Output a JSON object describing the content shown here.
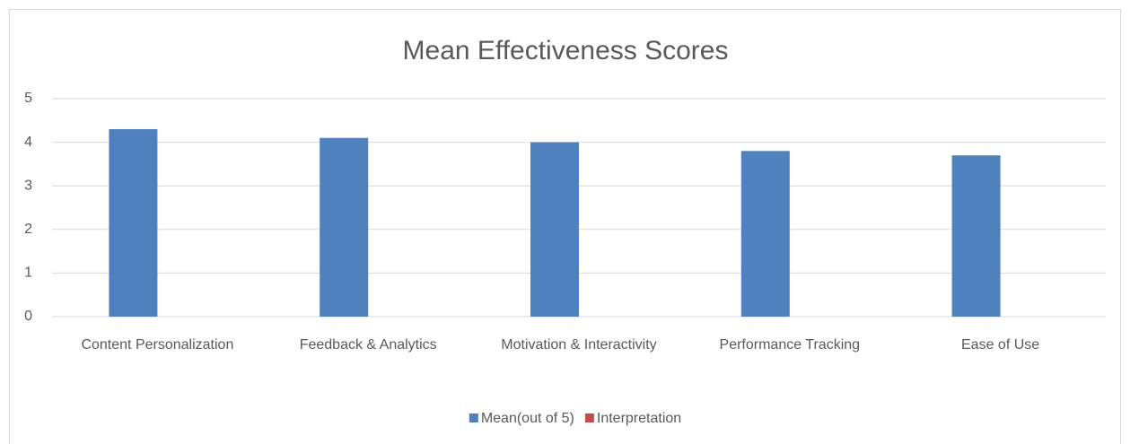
{
  "chart_data": {
    "type": "bar",
    "title": "Mean Effectiveness Scores",
    "categories": [
      "Content Personalization",
      "Feedback & Analytics",
      "Motivation & Interactivity",
      "Performance Tracking",
      "Ease of Use"
    ],
    "series": [
      {
        "name": "Mean(out of 5)",
        "color": "#4f81bd",
        "values": [
          4.3,
          4.1,
          4.0,
          3.8,
          3.7
        ]
      },
      {
        "name": "Interpretation",
        "color": "#c0504d",
        "values": [
          null,
          null,
          null,
          null,
          null
        ]
      }
    ],
    "ylim": [
      0,
      5
    ],
    "yticks": [
      0,
      1,
      2,
      3,
      4,
      5
    ],
    "grid": true,
    "legend": "bottom"
  }
}
